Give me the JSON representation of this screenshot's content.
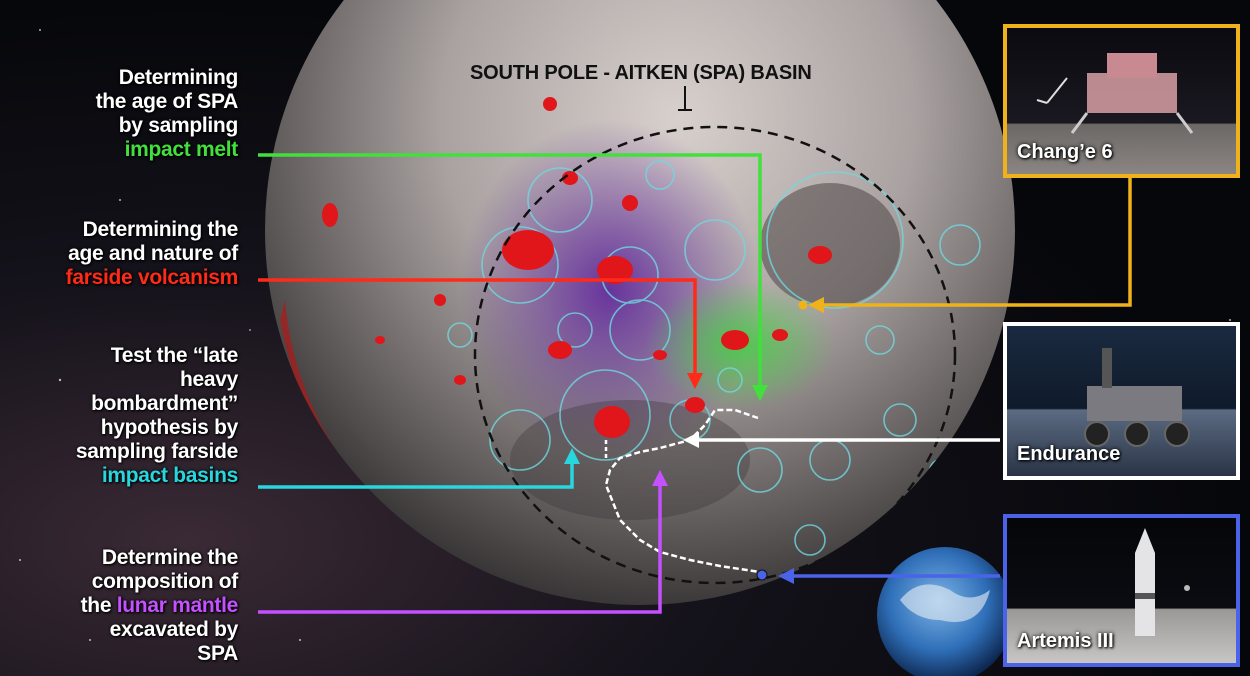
{
  "diagram": {
    "basin_label": "SOUTH POLE - AITKEN (SPA) BASIN",
    "objectives": [
      {
        "lines": [
          "Determining",
          "the age of SPA",
          "by sampling"
        ],
        "highlight": "impact melt",
        "color": "#41e03c"
      },
      {
        "lines": [
          "Determining the",
          "age and nature of"
        ],
        "highlight": "farside volcanism",
        "color": "#ff2a17"
      },
      {
        "lines": [
          "Test the “late",
          "heavy",
          "bombardment”",
          "hypothesis by",
          "sampling farside"
        ],
        "highlight": "impact basins",
        "color": "#28d6de"
      },
      {
        "lines_before": [
          "Determine the",
          "composition of"
        ],
        "prefix": "the ",
        "highlight": "lunar mantle",
        "lines_after": [
          "excavated by",
          "SPA"
        ],
        "color": "#c450ff"
      }
    ],
    "missions": [
      {
        "name": "Chang’e 6",
        "color": "#f0b21a"
      },
      {
        "name": "Endurance",
        "color": "#ffffff"
      },
      {
        "name": "Artemis III",
        "color": "#4a63e8"
      }
    ]
  }
}
